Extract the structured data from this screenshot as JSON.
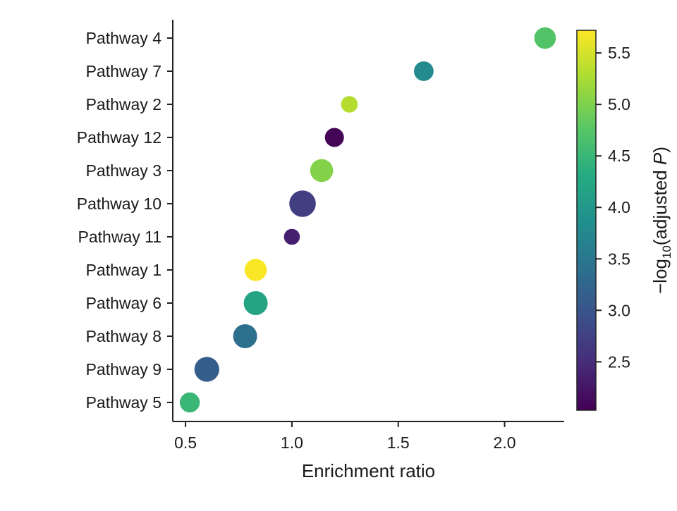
{
  "chart_data": {
    "type": "scatter",
    "title": "",
    "xlabel": "Enrichment ratio",
    "ylabel": "",
    "xlim": [
      0.44,
      2.28
    ],
    "xticks": [
      0.5,
      1.0,
      1.5,
      2.0
    ],
    "xtick_labels": [
      "0.5",
      "1.0",
      "1.5",
      "2.0"
    ],
    "categories": [
      "Pathway 4",
      "Pathway 7",
      "Pathway 2",
      "Pathway 12",
      "Pathway 3",
      "Pathway 10",
      "Pathway 11",
      "Pathway 1",
      "Pathway 6",
      "Pathway 8",
      "Pathway 9",
      "Pathway 5"
    ],
    "points": [
      {
        "label": "Pathway 4",
        "x": 2.19,
        "color_value": 4.72,
        "size": 4.4
      },
      {
        "label": "Pathway 7",
        "x": 1.62,
        "color_value": 3.78,
        "size": 3.6
      },
      {
        "label": "Pathway 2",
        "x": 1.27,
        "color_value": 5.32,
        "size": 2.6
      },
      {
        "label": "Pathway 12",
        "x": 1.2,
        "color_value": 2.07,
        "size": 3.4
      },
      {
        "label": "Pathway 3",
        "x": 1.14,
        "color_value": 5.03,
        "size": 5.0
      },
      {
        "label": "Pathway 10",
        "x": 1.05,
        "color_value": 2.72,
        "size": 6.6
      },
      {
        "label": "Pathway 11",
        "x": 1.0,
        "color_value": 2.36,
        "size": 2.4
      },
      {
        "label": "Pathway 1",
        "x": 0.83,
        "color_value": 5.7,
        "size": 4.6
      },
      {
        "label": "Pathway 6",
        "x": 0.83,
        "color_value": 4.18,
        "size": 5.4
      },
      {
        "label": "Pathway 8",
        "x": 0.78,
        "color_value": 3.4,
        "size": 5.4
      },
      {
        "label": "Pathway 9",
        "x": 0.6,
        "color_value": 3.13,
        "size": 5.8
      },
      {
        "label": "Pathway 5",
        "x": 0.52,
        "color_value": 4.5,
        "size": 3.8
      }
    ],
    "colorbar": {
      "colormap": "viridis",
      "range": [
        2.03,
        5.72
      ],
      "ticks": [
        2.5,
        3.0,
        3.5,
        4.0,
        4.5,
        5.0,
        5.5
      ],
      "tick_labels": [
        "2.5",
        "3.0",
        "3.5",
        "4.0",
        "4.5",
        "5.0",
        "5.5"
      ],
      "label_prefix": "−log",
      "label_sub": "10",
      "label_mid": "(adjusted ",
      "label_var": "P",
      "label_suffix": ")"
    },
    "grid": false,
    "legend": "none"
  }
}
